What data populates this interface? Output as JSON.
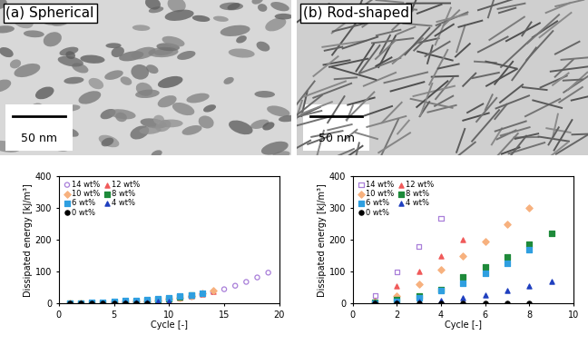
{
  "chart_data": [
    {
      "type": "scatter",
      "title": "(a) Spherical",
      "annotations": [
        "50 nm"
      ],
      "x_label": "Cycle [-]",
      "y_label": "Dissipated energy [kJ/m³]",
      "xlim": [
        0,
        20
      ],
      "xticks": [
        0,
        5,
        10,
        15,
        20
      ],
      "ylim": [
        0,
        400
      ],
      "yticks": [
        0,
        100,
        200,
        300,
        400
      ],
      "legend": "upper left",
      "series": [
        {
          "name": "14 wt%",
          "color": "#a97fd9",
          "marker": "open_circle",
          "x": [
            1,
            2,
            3,
            4,
            5,
            6,
            7,
            8,
            9,
            10,
            11,
            12,
            13,
            14,
            15,
            16,
            17,
            18,
            19
          ],
          "values": [
            0,
            0.5,
            1,
            2,
            3,
            4,
            5,
            7,
            9,
            12,
            16,
            21,
            28,
            36,
            45,
            56,
            68,
            82,
            97
          ]
        },
        {
          "name": "12 wt%",
          "color": "#f05a5a",
          "marker": "triangle",
          "x": [
            1,
            2,
            3,
            4,
            5,
            6,
            7,
            8,
            9,
            10,
            11,
            12,
            13,
            14
          ],
          "values": [
            0,
            0.5,
            1,
            2,
            3,
            4,
            5,
            7,
            10,
            13,
            18,
            24,
            31,
            39
          ]
        },
        {
          "name": "10 wt%",
          "color": "#f7b17e",
          "marker": "diamond",
          "x": [
            1,
            2,
            3,
            4,
            5,
            6,
            7,
            8,
            9,
            10,
            11,
            12,
            13,
            14
          ],
          "values": [
            0,
            0.5,
            1,
            2,
            3,
            4,
            6,
            8,
            11,
            14,
            19,
            25,
            32,
            40
          ]
        },
        {
          "name": "8 wt%",
          "color": "#1e8a3a",
          "marker": "square",
          "x": [
            1,
            2,
            3,
            4,
            5,
            6,
            7,
            8,
            9,
            10,
            11,
            12
          ],
          "values": [
            0,
            0.5,
            1,
            2,
            3,
            5,
            6,
            9,
            12,
            16,
            21,
            27
          ]
        },
        {
          "name": "6 wt%",
          "color": "#2f9fe0",
          "marker": "square",
          "x": [
            1,
            2,
            3,
            4,
            5,
            6,
            7,
            8,
            9,
            10,
            11,
            12,
            13
          ],
          "values": [
            1,
            2,
            3,
            5,
            7,
            9,
            11,
            13,
            16,
            19,
            23,
            27,
            32
          ]
        },
        {
          "name": "4 wt%",
          "color": "#1f3fbf",
          "marker": "triangle",
          "x": [
            1,
            2,
            3,
            4,
            5,
            6,
            7,
            8,
            9,
            10
          ],
          "values": [
            0,
            0.5,
            1,
            1.5,
            2,
            3,
            4,
            5,
            6,
            8
          ]
        },
        {
          "name": "0 wt%",
          "color": "#000000",
          "marker": "circle",
          "x": [
            1,
            2,
            3,
            4,
            5,
            6,
            7,
            8
          ],
          "values": [
            0,
            0,
            0,
            0,
            0,
            0,
            0,
            0
          ]
        }
      ]
    },
    {
      "type": "scatter",
      "title": "(b) Rod-shaped",
      "annotations": [
        "50 nm"
      ],
      "x_label": "Cycle [-]",
      "y_label": "Dissipated energy [kJ/m³]",
      "xlim": [
        0,
        10
      ],
      "xticks": [
        0,
        2,
        4,
        6,
        8,
        10
      ],
      "ylim": [
        0,
        400
      ],
      "yticks": [
        0,
        100,
        200,
        300,
        400
      ],
      "legend": "upper left",
      "series": [
        {
          "name": "14 wt%",
          "color": "#a97fd9",
          "marker": "open_square",
          "x": [
            1,
            2,
            3,
            4
          ],
          "values": [
            25,
            100,
            180,
            268
          ]
        },
        {
          "name": "12 wt%",
          "color": "#f05a5a",
          "marker": "triangle",
          "x": [
            1,
            2,
            3,
            4,
            5
          ],
          "values": [
            10,
            55,
            100,
            150,
            200
          ]
        },
        {
          "name": "10 wt%",
          "color": "#f7b17e",
          "marker": "diamond",
          "x": [
            1,
            2,
            3,
            4,
            5,
            6,
            7,
            8
          ],
          "values": [
            5,
            25,
            60,
            105,
            150,
            195,
            250,
            300
          ]
        },
        {
          "name": "8 wt%",
          "color": "#1e8a3a",
          "marker": "square",
          "x": [
            1,
            2,
            3,
            4,
            5,
            6,
            7,
            8,
            9
          ],
          "values": [
            3,
            12,
            25,
            45,
            85,
            115,
            145,
            185,
            220
          ]
        },
        {
          "name": "6 wt%",
          "color": "#2f9fe0",
          "marker": "square",
          "x": [
            1,
            2,
            3,
            4,
            5,
            6,
            7,
            8
          ],
          "values": [
            2,
            8,
            18,
            40,
            65,
            95,
            125,
            170
          ]
        },
        {
          "name": "4 wt%",
          "color": "#1f3fbf",
          "marker": "triangle",
          "x": [
            1,
            2,
            3,
            4,
            5,
            6,
            7,
            8,
            9
          ],
          "values": [
            1,
            3,
            6,
            10,
            18,
            28,
            40,
            55,
            70
          ]
        },
        {
          "name": "0 wt%",
          "color": "#000000",
          "marker": "circle",
          "x": [
            1,
            2,
            3,
            4,
            5,
            6,
            7,
            8
          ],
          "values": [
            0,
            0,
            0,
            0,
            0,
            0,
            0,
            0
          ]
        }
      ]
    }
  ]
}
